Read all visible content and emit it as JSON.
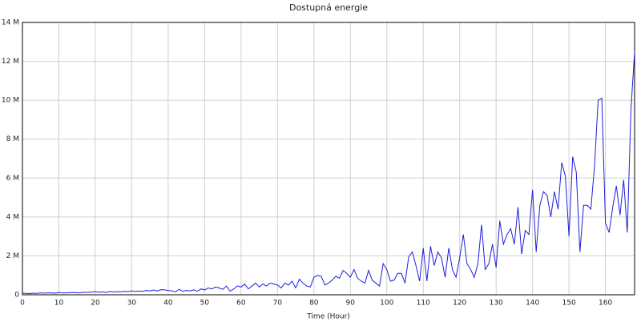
{
  "chart_data": {
    "type": "line",
    "title": "Dostupná energie",
    "x_label": "Time (Hour)",
    "x": [
      0,
      1,
      2,
      3,
      4,
      5,
      6,
      7,
      8,
      9,
      10,
      11,
      12,
      13,
      14,
      15,
      16,
      17,
      18,
      19,
      20,
      21,
      22,
      23,
      24,
      25,
      26,
      27,
      28,
      29,
      30,
      31,
      32,
      33,
      34,
      35,
      36,
      37,
      38,
      39,
      40,
      41,
      42,
      43,
      44,
      45,
      46,
      47,
      48,
      49,
      50,
      51,
      52,
      53,
      54,
      55,
      56,
      57,
      58,
      59,
      60,
      61,
      62,
      63,
      64,
      65,
      66,
      67,
      68,
      69,
      70,
      71,
      72,
      73,
      74,
      75,
      76,
      77,
      78,
      79,
      80,
      81,
      82,
      83,
      84,
      85,
      86,
      87,
      88,
      89,
      90,
      91,
      92,
      93,
      94,
      95,
      96,
      97,
      98,
      99,
      100,
      101,
      102,
      103,
      104,
      105,
      106,
      107,
      108,
      109,
      110,
      111,
      112,
      113,
      114,
      115,
      116,
      117,
      118,
      119,
      120,
      121,
      122,
      123,
      124,
      125,
      126,
      127,
      128,
      129,
      130,
      131,
      132,
      133,
      134,
      135,
      136,
      137,
      138,
      139,
      140,
      141,
      142,
      143,
      144,
      145,
      146,
      147,
      148,
      149,
      150,
      151,
      152,
      153,
      154,
      155,
      156,
      157,
      158,
      159,
      160,
      161,
      162,
      163,
      164,
      165,
      166,
      167,
      168
    ],
    "values": [
      0.08,
      0.07,
      0.06,
      0.08,
      0.07,
      0.1,
      0.08,
      0.09,
      0.1,
      0.08,
      0.12,
      0.09,
      0.1,
      0.11,
      0.12,
      0.1,
      0.11,
      0.13,
      0.12,
      0.14,
      0.16,
      0.13,
      0.15,
      0.12,
      0.17,
      0.14,
      0.16,
      0.15,
      0.18,
      0.16,
      0.2,
      0.17,
      0.19,
      0.18,
      0.22,
      0.2,
      0.24,
      0.19,
      0.26,
      0.25,
      0.22,
      0.2,
      0.15,
      0.28,
      0.18,
      0.22,
      0.2,
      0.25,
      0.18,
      0.3,
      0.25,
      0.35,
      0.3,
      0.4,
      0.35,
      0.28,
      0.45,
      0.18,
      0.3,
      0.45,
      0.4,
      0.55,
      0.3,
      0.45,
      0.6,
      0.4,
      0.55,
      0.45,
      0.6,
      0.55,
      0.5,
      0.35,
      0.6,
      0.5,
      0.7,
      0.35,
      0.8,
      0.6,
      0.45,
      0.4,
      0.9,
      1.0,
      0.95,
      0.5,
      0.6,
      0.75,
      0.95,
      0.85,
      1.25,
      1.1,
      0.9,
      1.3,
      0.85,
      0.7,
      0.6,
      1.25,
      0.75,
      0.6,
      0.45,
      1.6,
      1.3,
      0.7,
      0.75,
      1.1,
      1.1,
      0.6,
      1.95,
      2.2,
      1.5,
      0.7,
      2.4,
      0.7,
      2.5,
      1.5,
      2.2,
      1.9,
      0.9,
      2.4,
      1.3,
      0.9,
      1.9,
      3.1,
      1.6,
      1.3,
      0.9,
      1.6,
      3.6,
      1.3,
      1.6,
      2.6,
      1.4,
      3.8,
      2.6,
      3.1,
      3.4,
      2.6,
      4.5,
      2.1,
      3.3,
      3.1,
      5.4,
      2.2,
      4.6,
      5.3,
      5.1,
      4.0,
      5.3,
      4.4,
      6.8,
      6.1,
      3.0,
      7.1,
      6.3,
      2.2,
      4.6,
      4.6,
      4.4,
      6.6,
      10.0,
      10.1,
      3.7,
      3.2,
      4.5,
      5.6,
      4.1,
      5.9,
      3.2,
      9.5,
      12.5
    ],
    "color": "#1f1fdd",
    "xlim": [
      0,
      168
    ],
    "xticks": [
      0,
      10,
      20,
      30,
      40,
      50,
      60,
      70,
      80,
      90,
      100,
      110,
      120,
      130,
      140,
      150,
      160
    ],
    "ylim": [
      0,
      14
    ],
    "yticks": [
      0,
      {
        "value": 2,
        "label": "2 M"
      },
      {
        "value": 4,
        "label": "4 M"
      },
      {
        "value": 6,
        "label": "6 M"
      },
      {
        "value": 8,
        "label": "8 M"
      },
      {
        "value": 10,
        "label": "10 M"
      },
      {
        "value": 12,
        "label": "12 M"
      },
      {
        "value": 14,
        "label": "14 M"
      }
    ],
    "grid": true
  }
}
